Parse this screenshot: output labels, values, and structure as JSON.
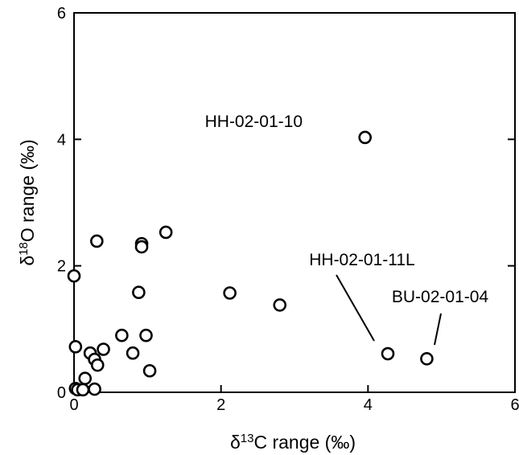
{
  "chart_data": {
    "type": "scatter",
    "title": "",
    "xlabel": {
      "prefix": "δ",
      "sup": "13",
      "suffix": "C range (‰)"
    },
    "ylabel": {
      "prefix": "δ",
      "sup": "18",
      "suffix": "O range (‰)"
    },
    "xlim": [
      0,
      6
    ],
    "ylim": [
      0,
      6
    ],
    "xticks": [
      0,
      2,
      4,
      6
    ],
    "yticks": [
      0,
      2,
      4,
      6
    ],
    "grid": false,
    "legend": "none",
    "points": [
      {
        "x": 0.0,
        "y": 1.84
      },
      {
        "x": 0.02,
        "y": 0.72
      },
      {
        "x": 0.02,
        "y": 0.06
      },
      {
        "x": 0.05,
        "y": 0.04
      },
      {
        "x": 0.12,
        "y": 0.04
      },
      {
        "x": 0.15,
        "y": 0.22
      },
      {
        "x": 0.22,
        "y": 0.62
      },
      {
        "x": 0.28,
        "y": 0.52
      },
      {
        "x": 0.32,
        "y": 0.43
      },
      {
        "x": 0.28,
        "y": 0.05
      },
      {
        "x": 0.31,
        "y": 2.39
      },
      {
        "x": 0.4,
        "y": 0.68
      },
      {
        "x": 0.65,
        "y": 0.9
      },
      {
        "x": 0.8,
        "y": 0.62
      },
      {
        "x": 0.88,
        "y": 1.58
      },
      {
        "x": 0.92,
        "y": 2.35
      },
      {
        "x": 0.92,
        "y": 2.3
      },
      {
        "x": 0.98,
        "y": 0.9
      },
      {
        "x": 1.03,
        "y": 0.34
      },
      {
        "x": 1.25,
        "y": 2.53
      },
      {
        "x": 2.12,
        "y": 1.57
      },
      {
        "x": 2.8,
        "y": 1.38
      },
      {
        "x": 3.96,
        "y": 4.03
      },
      {
        "x": 4.27,
        "y": 0.61
      },
      {
        "x": 4.8,
        "y": 0.53
      }
    ],
    "annotations": [
      {
        "text": "HH-02-01-10",
        "x": 3.96,
        "y": 4.03,
        "leader": false
      },
      {
        "text": "HH-02-01-11L",
        "x": 4.27,
        "y": 0.61,
        "leader": true
      },
      {
        "text": "BU-02-01-04",
        "x": 4.8,
        "y": 0.53,
        "leader": true
      }
    ]
  }
}
